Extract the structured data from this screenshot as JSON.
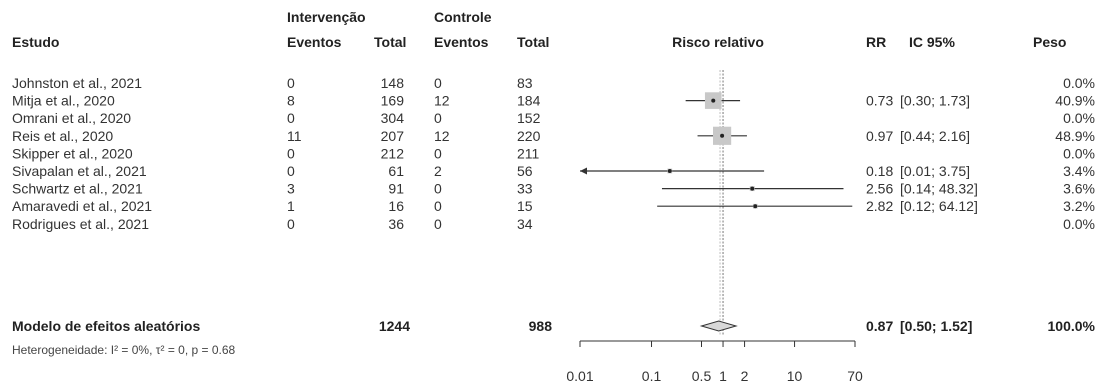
{
  "header": {
    "group1": "Intervenção",
    "group2": "Controle",
    "study": "Estudo",
    "events1": "Eventos",
    "total1": "Total",
    "events2": "Eventos",
    "total2": "Total",
    "plot_title": "Risco relativo",
    "rr": "RR",
    "ci": "IC 95%",
    "weight": "Peso"
  },
  "rows": [
    {
      "study": "Johnston et al., 2021",
      "e1": "0",
      "n1": "148",
      "e2": "0",
      "n2": "83",
      "rr": "",
      "ci": "",
      "weight": "0.0%"
    },
    {
      "study": "Mitja et al., 2020",
      "e1": "8",
      "n1": "169",
      "e2": "12",
      "n2": "184",
      "rr": "0.73",
      "ci": "[0.30;  1.73]",
      "weight": "40.9%"
    },
    {
      "study": "Omrani et al., 2020",
      "e1": "0",
      "n1": "304",
      "e2": "0",
      "n2": "152",
      "rr": "",
      "ci": "",
      "weight": "0.0%"
    },
    {
      "study": "Reis et al., 2020",
      "e1": "11",
      "n1": "207",
      "e2": "12",
      "n2": "220",
      "rr": "0.97",
      "ci": "[0.44;  2.16]",
      "weight": "48.9%"
    },
    {
      "study": "Skipper et al., 2020",
      "e1": "0",
      "n1": "212",
      "e2": "0",
      "n2": "211",
      "rr": "",
      "ci": "",
      "weight": "0.0%"
    },
    {
      "study": "Sivapalan et al., 2021",
      "e1": "0",
      "n1": "61",
      "e2": "2",
      "n2": "56",
      "rr": "0.18",
      "ci": "[0.01;  3.75]",
      "weight": "3.4%"
    },
    {
      "study": "Schwartz et al., 2021",
      "e1": "3",
      "n1": "91",
      "e2": "0",
      "n2": "33",
      "rr": "2.56",
      "ci": "[0.14; 48.32]",
      "weight": "3.6%"
    },
    {
      "study": "Amaravedi et al., 2021",
      "e1": "1",
      "n1": "16",
      "e2": "0",
      "n2": "15",
      "rr": "2.82",
      "ci": "[0.12; 64.12]",
      "weight": "3.2%"
    },
    {
      "study": "Rodrigues et al., 2021",
      "e1": "0",
      "n1": "36",
      "e2": "0",
      "n2": "34",
      "rr": "",
      "ci": "",
      "weight": "0.0%"
    }
  ],
  "summary": {
    "label": "Modelo de efeitos aleatórios",
    "n1": "1244",
    "n2": "988",
    "rr": "0.87",
    "ci": "[0.50;  1.52]",
    "weight": "100.0%",
    "heterogeneity": "Heterogeneidade: I² = 0%, τ² = 0, p = 0.68"
  },
  "chart_data": {
    "type": "forest",
    "x_scale": "log",
    "xlim": [
      0.01,
      70
    ],
    "x_ticks": [
      0.01,
      0.1,
      0.5,
      1,
      2,
      10,
      70
    ],
    "x_tick_labels": [
      "0.01",
      "0.1",
      "0.5",
      "1",
      "2",
      "10",
      "70"
    ],
    "title": "Risco relativo",
    "studies": [
      {
        "name": "Johnston et al., 2021",
        "rr": null,
        "lower": null,
        "upper": null,
        "weight": 0.0
      },
      {
        "name": "Mitja et al., 2020",
        "rr": 0.73,
        "lower": 0.3,
        "upper": 1.73,
        "weight": 40.9
      },
      {
        "name": "Omrani et al., 2020",
        "rr": null,
        "lower": null,
        "upper": null,
        "weight": 0.0
      },
      {
        "name": "Reis et al., 2020",
        "rr": 0.97,
        "lower": 0.44,
        "upper": 2.16,
        "weight": 48.9
      },
      {
        "name": "Skipper et al., 2020",
        "rr": null,
        "lower": null,
        "upper": null,
        "weight": 0.0
      },
      {
        "name": "Sivapalan et al., 2021",
        "rr": 0.18,
        "lower": 0.01,
        "upper": 3.75,
        "weight": 3.4
      },
      {
        "name": "Schwartz et al., 2021",
        "rr": 2.56,
        "lower": 0.14,
        "upper": 48.32,
        "weight": 3.6
      },
      {
        "name": "Amaravedi et al., 2021",
        "rr": 2.82,
        "lower": 0.12,
        "upper": 64.12,
        "weight": 3.2
      },
      {
        "name": "Rodrigues et al., 2021",
        "rr": null,
        "lower": null,
        "upper": null,
        "weight": 0.0
      }
    ],
    "pooled": {
      "rr": 0.87,
      "lower": 0.5,
      "upper": 1.52,
      "weight": 100.0
    },
    "reference_line": 1,
    "colors": {
      "box": "#c8c8c8",
      "line": "#333333",
      "point": "#222222",
      "ref": "#777777"
    }
  }
}
